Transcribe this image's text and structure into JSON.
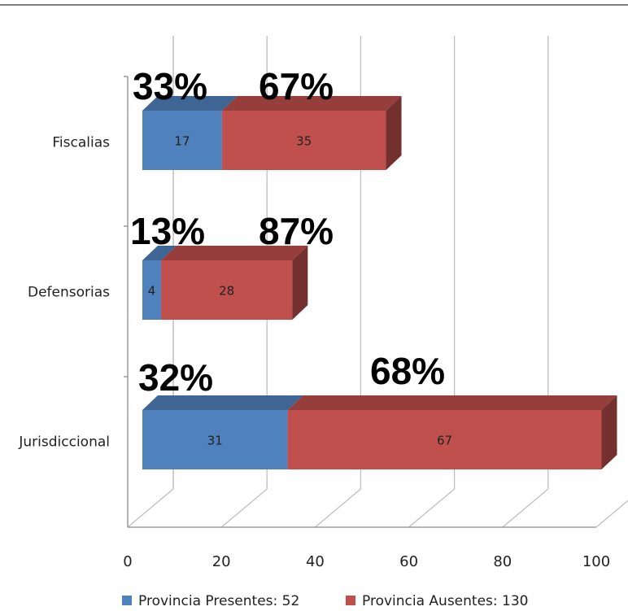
{
  "chart_data": {
    "type": "bar",
    "orientation": "horizontal",
    "stacked": true,
    "three_d": true,
    "categories": [
      "Fiscalias",
      "Defensorias",
      "Jurisdiccional"
    ],
    "series": [
      {
        "name": "Provincia Presentes: 52",
        "values": [
          17,
          4,
          31
        ],
        "color": "#4f81bd"
      },
      {
        "name": "Provincia Ausentes: 130",
        "values": [
          35,
          28,
          67
        ],
        "color": "#c0504d"
      }
    ],
    "percent_labels": [
      [
        "33%",
        "67%"
      ],
      [
        "13%",
        "87%"
      ],
      [
        "32%",
        "68%"
      ]
    ],
    "xlim": [
      0,
      100
    ],
    "xticks": [
      0,
      20,
      40,
      60,
      80,
      100
    ],
    "grid": true,
    "legend_position": "bottom"
  }
}
